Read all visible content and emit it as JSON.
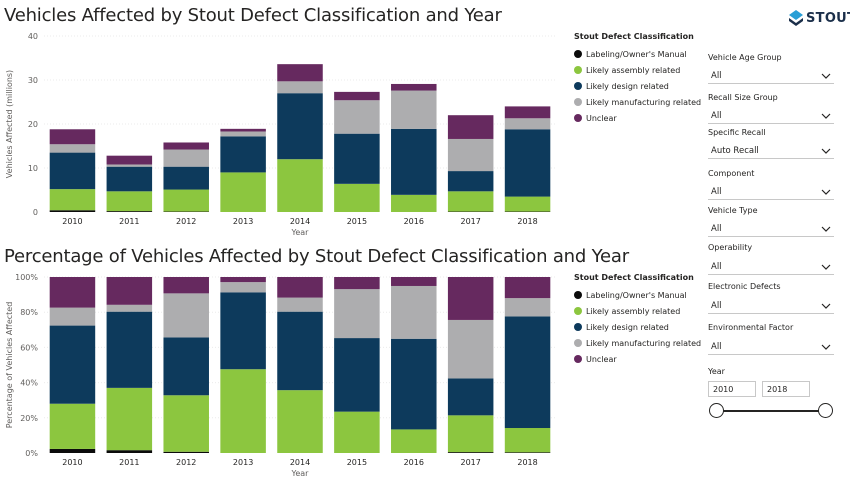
{
  "colors": {
    "labeling": "#0b0b0b",
    "assembly": "#8cc63f",
    "design": "#0d3a5c",
    "manufacturing": "#adadaf",
    "unclear": "#66295f"
  },
  "logo": {
    "text": "STOUT",
    "icon": "stout-diamond-logo"
  },
  "chart1": {
    "title": "Vehicles Affected by Stout Defect Classification and Year",
    "chart_data": {
      "type": "bar",
      "stacked": true,
      "title": "Vehicles Affected by Stout Defect Classification and Year",
      "xlabel": "Year",
      "ylabel": "Vehicles Affected (millions)",
      "ylim": [
        0,
        40
      ],
      "yticks": [
        "0",
        "10",
        "20",
        "30",
        "40"
      ],
      "grid": true,
      "legend_position": "right",
      "categories": [
        "2010",
        "2011",
        "2012",
        "2013",
        "2014",
        "2015",
        "2016",
        "2017",
        "2018"
      ],
      "series": [
        {
          "name": "Labeling/Owner's Manual",
          "values": [
            0.4,
            0.2,
            0.1,
            0.0,
            0.0,
            0.0,
            0.0,
            0.1,
            0.1
          ]
        },
        {
          "name": "Likely assembly related",
          "values": [
            4.8,
            4.5,
            5.0,
            9.0,
            12.0,
            6.4,
            3.9,
            4.6,
            3.4
          ]
        },
        {
          "name": "Likely design related",
          "values": [
            8.3,
            5.6,
            5.2,
            8.2,
            15.0,
            11.4,
            15.0,
            4.6,
            15.3
          ]
        },
        {
          "name": "Likely manufacturing related",
          "values": [
            1.9,
            0.5,
            3.9,
            1.1,
            2.7,
            7.6,
            8.7,
            7.3,
            2.5
          ]
        },
        {
          "name": "Unclear",
          "values": [
            3.4,
            2.0,
            1.6,
            0.6,
            3.9,
            1.9,
            1.5,
            5.4,
            2.7
          ]
        }
      ]
    },
    "legend": {
      "title": "Stout Defect Classification",
      "items": [
        "Labeling/Owner's Manual",
        "Likely assembly related",
        "Likely design related",
        "Likely manufacturing related",
        "Unclear"
      ]
    }
  },
  "chart2": {
    "title": "Percentage of Vehicles Affected by Stout Defect Classification and Year",
    "chart_data": {
      "type": "bar",
      "stacked": true,
      "percent": true,
      "title": "Percentage of Vehicles Affected by Stout Defect Classification and Year",
      "xlabel": "Year",
      "ylabel": "Percentage of Vehicles Affected",
      "ylim": [
        0,
        100
      ],
      "yticks": [
        "0%",
        "20%",
        "40%",
        "60%",
        "80%",
        "100%"
      ],
      "grid": true,
      "legend_position": "right",
      "categories": [
        "2010",
        "2011",
        "2012",
        "2013",
        "2014",
        "2015",
        "2016",
        "2017",
        "2018"
      ],
      "series": [
        {
          "name": "Labeling/Owner's Manual",
          "values": [
            2.3,
            1.6,
            0.7,
            0.0,
            0.0,
            0.0,
            0.0,
            0.5,
            0.4
          ]
        },
        {
          "name": "Likely assembly related",
          "values": [
            25.7,
            35.4,
            32.1,
            47.6,
            35.7,
            23.5,
            13.4,
            20.9,
            13.8
          ]
        },
        {
          "name": "Likely design related",
          "values": [
            44.4,
            43.3,
            32.9,
            43.7,
            44.6,
            41.8,
            51.5,
            21.0,
            63.4
          ]
        },
        {
          "name": "Likely manufacturing related",
          "values": [
            10.2,
            3.9,
            25.0,
            5.8,
            8.0,
            27.8,
            30.0,
            33.2,
            10.4
          ]
        },
        {
          "name": "Unclear",
          "values": [
            17.4,
            15.8,
            9.3,
            2.9,
            11.7,
            6.9,
            5.1,
            24.4,
            12.0
          ]
        }
      ]
    },
    "legend": {
      "title": "Stout Defect Classification",
      "items": [
        "Labeling/Owner's Manual",
        "Likely assembly related",
        "Likely design related",
        "Likely manufacturing related",
        "Unclear"
      ]
    }
  },
  "filters": {
    "vehicle_age_group": {
      "label": "Vehicle Age Group",
      "value": "All"
    },
    "recall_size_group": {
      "label": "Recall Size Group",
      "value": "All"
    },
    "specific_recall": {
      "label": "Specific Recall",
      "value": "Auto Recall"
    },
    "component": {
      "label": "Component",
      "value": "All"
    },
    "vehicle_type": {
      "label": "Vehicle Type",
      "value": "All"
    },
    "operability": {
      "label": "Operability",
      "value": "All"
    },
    "electronic_defects": {
      "label": "Electronic Defects",
      "value": "All"
    },
    "environmental_factor": {
      "label": "Environmental Factor",
      "value": "All"
    },
    "year": {
      "label": "Year",
      "from": "2010",
      "to": "2018"
    }
  }
}
